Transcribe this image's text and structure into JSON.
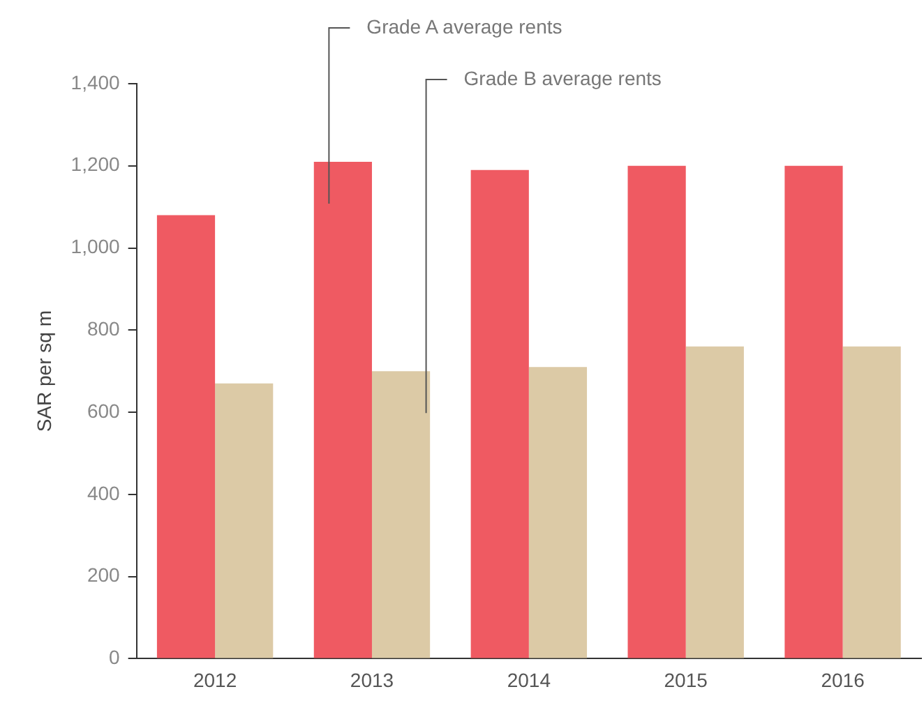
{
  "chart_data": {
    "type": "bar",
    "ylabel": "SAR per sq m",
    "categories": [
      "2012",
      "2013",
      "2014",
      "2015",
      "2016"
    ],
    "series": [
      {
        "name": "Grade A average rents",
        "color": "#ef5a62",
        "values": [
          1080,
          1210,
          1190,
          1200,
          1200
        ]
      },
      {
        "name": "Grade B average rents",
        "color": "#dccaa6",
        "values": [
          670,
          700,
          710,
          760,
          760
        ]
      }
    ],
    "ylim": [
      0,
      1400
    ],
    "yticks": [
      {
        "value": 0,
        "label": "0"
      },
      {
        "value": 200,
        "label": "200"
      },
      {
        "value": 400,
        "label": "400"
      },
      {
        "value": 600,
        "label": "600"
      },
      {
        "value": 800,
        "label": "800"
      },
      {
        "value": 1000,
        "label": "1,000"
      },
      {
        "value": 1200,
        "label": "1,200"
      },
      {
        "value": 1400,
        "label": "1,400"
      }
    ],
    "grid": false,
    "legend": false
  }
}
